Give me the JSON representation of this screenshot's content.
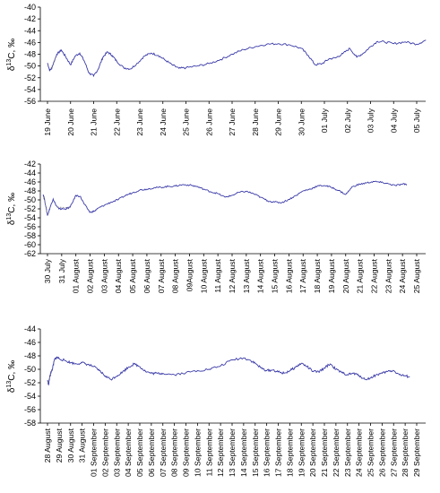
{
  "chart_data": [
    {
      "type": "line",
      "ylabel": "δ13C, ‰",
      "ylim": [
        -56,
        -40
      ],
      "yticks": [
        -56,
        -54,
        -52,
        -50,
        -48,
        -46,
        -44,
        -42,
        -40
      ],
      "categories": [
        "19 June",
        "20 June",
        "21 June",
        "22 June",
        "23 June",
        "24 June",
        "25 June",
        "26 June",
        "27 June",
        "28 June",
        "29 June",
        "30 June",
        "01 July",
        "02 July",
        "03 July",
        "04 July",
        "05 July"
      ],
      "series": [
        {
          "x": [
            0,
            0.1,
            0.2,
            0.4,
            0.6,
            0.8,
            1.0,
            1.2,
            1.4,
            1.6,
            1.8,
            2.0,
            2.2,
            2.4,
            2.6,
            2.8,
            3.0,
            3.3,
            3.6,
            3.9,
            4.2,
            4.5,
            4.8,
            5.1,
            5.4,
            5.7,
            6.0,
            6.5,
            7.0,
            7.5,
            8.0,
            8.5,
            9.0,
            9.5,
            10.0,
            10.5,
            11.0,
            11.3,
            11.6,
            11.9,
            12.2,
            12.5,
            12.8,
            13.1,
            13.4,
            13.7,
            14.0,
            14.3,
            14.6,
            15.0,
            15.5,
            16.0,
            16.4
          ],
          "y": [
            -49.5,
            -50.8,
            -50.2,
            -48.0,
            -47.3,
            -48.5,
            -49.8,
            -48.3,
            -47.8,
            -49.2,
            -51.2,
            -51.7,
            -50.5,
            -48.5,
            -47.6,
            -48.2,
            -49.2,
            -50.3,
            -50.5,
            -49.5,
            -48.3,
            -47.8,
            -48.2,
            -49.0,
            -49.8,
            -50.4,
            -50.3,
            -50.0,
            -49.6,
            -48.9,
            -48.0,
            -47.2,
            -46.7,
            -46.3,
            -46.2,
            -46.4,
            -47.0,
            -48.2,
            -49.8,
            -49.6,
            -48.8,
            -48.6,
            -47.9,
            -47.0,
            -48.5,
            -47.8,
            -46.7,
            -45.8,
            -45.9,
            -46.2,
            -45.9,
            -46.3,
            -45.6
          ]
        }
      ],
      "dashed_segments": [
        [
          0.15,
          0.35
        ]
      ]
    },
    {
      "type": "line",
      "ylabel": "δ13C, ‰",
      "ylim": [
        -62,
        -42
      ],
      "yticks": [
        -62,
        -60,
        -58,
        -56,
        -54,
        -52,
        -50,
        -48,
        -46,
        -44,
        -42
      ],
      "categories": [
        "30 July",
        "31 July",
        "01 August",
        "02 August",
        "03 August",
        "04 August",
        "05 August",
        "06 August",
        "07 August",
        "08 August",
        "09August",
        "10 August",
        "11 August",
        "12 August",
        "13 August",
        "14 August",
        "15 August",
        "16 August",
        "17 August",
        "18 August",
        "19 August",
        "20 August",
        "21 August",
        "22 August",
        "23 August",
        "24 August",
        "25 August"
      ],
      "series": [
        {
          "x": [
            -0.3,
            -0.2,
            0.0,
            0.2,
            0.4,
            0.6,
            0.8,
            1.0,
            1.3,
            1.6,
            2.0,
            2.3,
            2.6,
            3.0,
            3.3,
            3.6,
            4.0,
            4.5,
            5.0,
            5.5,
            6.0,
            6.5,
            7.0,
            7.5,
            8.0,
            8.5,
            9.0,
            9.5,
            10.0,
            10.5,
            11.0,
            11.5,
            12.0,
            12.5,
            13.0,
            13.5,
            14.0,
            14.5,
            15.0,
            15.5,
            16.0,
            16.5,
            17.0,
            17.5,
            18.0,
            18.5,
            19.0,
            19.5,
            20.0,
            20.5,
            21.0,
            21.5,
            22.0,
            22.5,
            23.0,
            23.5,
            24.0,
            24.5,
            25.0,
            25.3
          ],
          "y": [
            -48.8,
            -50.0,
            -53.5,
            -51.5,
            -49.8,
            -51.2,
            -52.0,
            -52.0,
            -52.0,
            -51.6,
            -49.0,
            -49.2,
            -51.0,
            -52.8,
            -52.5,
            -51.8,
            -51.2,
            -50.5,
            -49.9,
            -49.0,
            -48.4,
            -47.8,
            -47.6,
            -47.3,
            -47.2,
            -47.0,
            -46.9,
            -46.6,
            -46.7,
            -47.0,
            -47.6,
            -48.2,
            -48.6,
            -49.4,
            -49.0,
            -48.3,
            -48.1,
            -48.6,
            -49.4,
            -50.2,
            -50.5,
            -50.6,
            -49.9,
            -49.0,
            -48.0,
            -47.6,
            -46.9,
            -46.8,
            -47.2,
            -47.9,
            -48.8,
            -47.0,
            -46.5,
            -46.2,
            -45.9,
            -46.1,
            -46.4,
            -46.8,
            -46.5,
            -46.5
          ]
        }
      ],
      "dashed_segments": [
        [
          -0.25,
          0.0
        ],
        [
          0.7,
          1.5
        ]
      ]
    },
    {
      "type": "line",
      "ylabel": "δ13C, ‰",
      "ylim": [
        -58,
        -44
      ],
      "yticks": [
        -58,
        -56,
        -54,
        -52,
        -50,
        -48,
        -46,
        -44
      ],
      "categories": [
        "28 August",
        "29 August",
        "30 August",
        "31 August",
        "01 September",
        "02 September",
        "03 September",
        "04 September",
        "05 September",
        "06 September",
        "07 September",
        "08 September",
        "09 September",
        "10 September",
        "11 September",
        "12 September",
        "13 September",
        "14 September",
        "15 September",
        "16 September",
        "17 September",
        "18 September",
        "19 September",
        "20 September",
        "21 September",
        "22 September",
        "23 September",
        "24 September",
        "25 September",
        "26 September",
        "27 September",
        "28 September",
        "29 September"
      ],
      "series": [
        {
          "x": [
            0.0,
            0.1,
            0.2,
            0.3,
            0.45,
            0.6,
            0.8,
            1.0,
            1.5,
            2.0,
            2.5,
            3.0,
            3.5,
            4.0,
            4.5,
            5.0,
            5.5,
            6.0,
            6.5,
            7.0,
            7.5,
            8.0,
            8.5,
            9.0,
            9.5,
            10.0,
            11.0,
            12.0,
            13.0,
            14.0,
            15.0,
            16.0,
            17.0,
            17.5,
            18.0,
            18.5,
            19.0,
            19.5,
            20.0,
            20.5,
            21.0,
            21.5,
            22.0,
            22.5,
            23.0,
            23.5,
            24.0,
            24.5,
            25.0,
            25.5,
            26.0,
            26.5,
            27.0,
            27.5,
            28.0,
            28.5,
            29.0,
            29.5,
            30.0,
            30.5,
            31.0,
            31.4
          ],
          "y": [
            -51.6,
            -52.3,
            -51.0,
            -50.5,
            -49.8,
            -48.6,
            -48.2,
            -48.4,
            -48.7,
            -49.0,
            -49.2,
            -49.0,
            -49.3,
            -49.6,
            -50.2,
            -51.0,
            -51.5,
            -51.0,
            -50.4,
            -49.7,
            -49.2,
            -49.6,
            -50.3,
            -50.6,
            -50.6,
            -50.6,
            -50.8,
            -50.5,
            -50.2,
            -50.0,
            -49.5,
            -48.6,
            -48.3,
            -48.6,
            -49.1,
            -49.8,
            -50.2,
            -50.1,
            -50.4,
            -50.6,
            -50.2,
            -49.7,
            -49.1,
            -49.6,
            -50.3,
            -50.4,
            -49.8,
            -49.2,
            -50.0,
            -50.5,
            -50.8,
            -50.6,
            -50.9,
            -51.5,
            -51.3,
            -50.8,
            -50.6,
            -50.3,
            -50.2,
            -50.8,
            -51.0,
            -51.1
          ]
        }
      ],
      "dashed_segments": [
        [
          0.05,
          0.35
        ]
      ]
    }
  ]
}
